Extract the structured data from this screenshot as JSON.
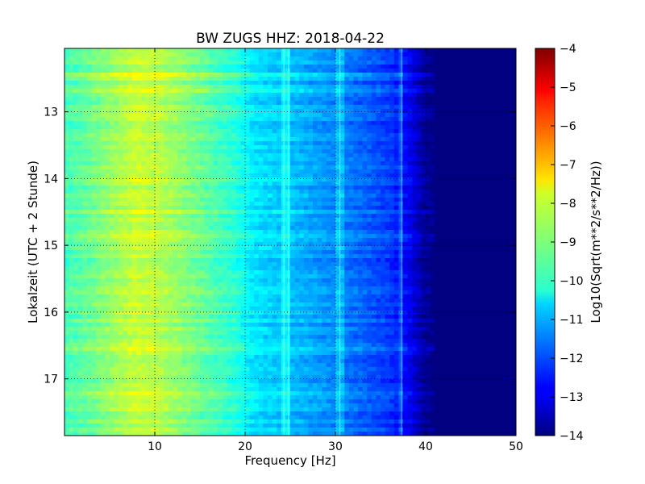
{
  "chart_data": {
    "type": "heatmap",
    "title": "BW ZUGS HHZ: 2018-04-22",
    "xlabel": "Frequency [Hz]",
    "ylabel": "Lokalzeit (UTC + 2 Stunde)",
    "colorbar_label": "Log10(Sqrt(m**2/s**2/Hz))",
    "colormap": "jet",
    "xlim": [
      0,
      50
    ],
    "ylim": [
      17.85,
      12.05
    ],
    "y_inverted": true,
    "grid": true,
    "x_ticks": [
      10,
      20,
      30,
      40,
      50
    ],
    "x_tick_labels": [
      "10",
      "20",
      "30",
      "40",
      "50"
    ],
    "y_ticks": [
      13,
      14,
      15,
      16,
      17
    ],
    "y_tick_labels": [
      "13",
      "14",
      "15",
      "16",
      "17"
    ],
    "colorbar_range": [
      -14,
      -4
    ],
    "colorbar_ticks": [
      -4,
      -5,
      -6,
      -7,
      -8,
      -9,
      -10,
      -11,
      -12,
      -13,
      -14
    ],
    "colorbar_tick_labels": [
      "−4",
      "−5",
      "−6",
      "−7",
      "−8",
      "−9",
      "−10",
      "−11",
      "−12",
      "−13",
      "−14"
    ],
    "spectrum_profile": {
      "frequency_hz": [
        0,
        3,
        5,
        8,
        10,
        13,
        16,
        19,
        21,
        24,
        27,
        30,
        33,
        36,
        38,
        39.5,
        41,
        50
      ],
      "log10_value": [
        -9.6,
        -9.2,
        -8.8,
        -8.3,
        -8.4,
        -8.9,
        -9.4,
        -9.9,
        -10.5,
        -10.8,
        -11.1,
        -11.4,
        -11.8,
        -12.2,
        -12.8,
        -13.6,
        -14.0,
        -14.0
      ]
    },
    "spectral_lines_hz": [
      24.3,
      24.8,
      30.5,
      37.3
    ]
  }
}
